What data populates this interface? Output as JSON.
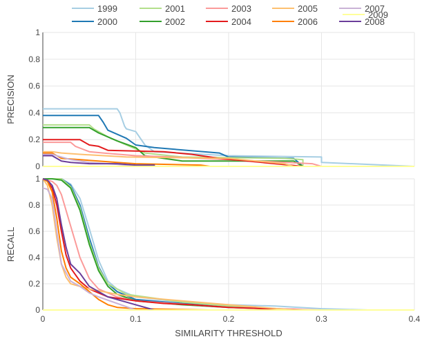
{
  "chart_data": [
    {
      "type": "line",
      "panel": "top",
      "ylabel": "PRECISION",
      "xlabel": "",
      "xlim": [
        0,
        0.4
      ],
      "ylim": [
        0,
        1
      ],
      "yticks": [
        "0",
        "0.2",
        "0.4",
        "0.6",
        "0.8",
        "1"
      ],
      "series": [
        {
          "name": "1999",
          "color": "#a6cee3",
          "x": [
            0,
            0.08,
            0.083,
            0.085,
            0.088,
            0.09,
            0.1,
            0.11,
            0.12,
            0.2,
            0.3,
            0.3,
            0.4
          ],
          "y": [
            0.43,
            0.43,
            0.4,
            0.36,
            0.3,
            0.28,
            0.26,
            0.16,
            0.11,
            0.08,
            0.07,
            0.03,
            0
          ]
        },
        {
          "name": "2000",
          "color": "#1f78b4",
          "x": [
            0,
            0.06,
            0.065,
            0.07,
            0.09,
            0.1,
            0.12,
            0.19,
            0.2,
            0.27,
            0.28
          ],
          "y": [
            0.38,
            0.38,
            0.33,
            0.27,
            0.21,
            0.16,
            0.14,
            0.1,
            0.07,
            0.06,
            0
          ]
        },
        {
          "name": "2001",
          "color": "#b2df8a",
          "x": [
            0,
            0.05,
            0.055,
            0.07,
            0.09,
            0.11,
            0.15,
            0.26,
            0.28,
            0.28
          ],
          "y": [
            0.31,
            0.31,
            0.28,
            0.22,
            0.16,
            0.1,
            0.07,
            0.06,
            0.05,
            0
          ]
        },
        {
          "name": "2002",
          "color": "#33a02c",
          "x": [
            0,
            0.05,
            0.06,
            0.08,
            0.1,
            0.11,
            0.15,
            0.27,
            0.28
          ],
          "y": [
            0.29,
            0.29,
            0.25,
            0.19,
            0.14,
            0.08,
            0.04,
            0.04,
            0
          ]
        },
        {
          "name": "2003",
          "color": "#fb9a99",
          "x": [
            0,
            0.03,
            0.035,
            0.05,
            0.065,
            0.1,
            0.14,
            0.29,
            0.3
          ],
          "y": [
            0.18,
            0.18,
            0.15,
            0.11,
            0.1,
            0.08,
            0.07,
            0.02,
            0
          ]
        },
        {
          "name": "2004",
          "color": "#e31a1c",
          "x": [
            0,
            0.04,
            0.05,
            0.06,
            0.07,
            0.13,
            0.16,
            0.19,
            0.25,
            0.28
          ],
          "y": [
            0.2,
            0.2,
            0.16,
            0.15,
            0.12,
            0.11,
            0.09,
            0.06,
            0.02,
            0
          ]
        },
        {
          "name": "2005",
          "color": "#fdbf6f",
          "x": [
            0,
            0.01,
            0.02,
            0.04,
            0.09,
            0.2,
            0.26,
            0.27
          ],
          "y": [
            0.11,
            0.11,
            0.1,
            0.09,
            0.07,
            0.06,
            0.02,
            0
          ]
        },
        {
          "name": "2006",
          "color": "#ff7f00",
          "x": [
            0,
            0.01,
            0.015,
            0.02,
            0.04,
            0.08,
            0.1,
            0.17,
            0.18
          ],
          "y": [
            0.1,
            0.1,
            0.08,
            0.06,
            0.05,
            0.03,
            0.02,
            0.01,
            0
          ]
        },
        {
          "name": "2007",
          "color": "#cab2d6",
          "x": [
            0,
            0.01,
            0.02,
            0.03,
            0.05,
            0.07,
            0.09,
            0.1
          ],
          "y": [
            0.09,
            0.09,
            0.07,
            0.05,
            0.03,
            0.02,
            0.01,
            0
          ]
        },
        {
          "name": "2008",
          "color": "#6a3d9a",
          "x": [
            0,
            0.01,
            0.015,
            0.02,
            0.03,
            0.05,
            0.08,
            0.1,
            0.12,
            0.12
          ],
          "y": [
            0.08,
            0.08,
            0.06,
            0.04,
            0.03,
            0.02,
            0.02,
            0.01,
            0.01,
            0
          ]
        },
        {
          "name": "2009",
          "color": "#ffff99",
          "x": [
            0,
            0.4
          ],
          "y": [
            0,
            0
          ]
        }
      ]
    },
    {
      "type": "line",
      "panel": "bottom",
      "ylabel": "RECALL",
      "xlabel": "SIMILARITY THRESHOLD",
      "xlim": [
        0,
        0.4
      ],
      "ylim": [
        0,
        1
      ],
      "xticks": [
        "0",
        "0.1",
        "0.2",
        "0.3",
        "0.4"
      ],
      "yticks": [
        "0",
        "0.2",
        "0.4",
        "0.6",
        "0.8",
        "1"
      ],
      "series": [
        {
          "name": "1999",
          "color": "#a6cee3",
          "x": [
            0,
            0.01,
            0.02,
            0.03,
            0.04,
            0.05,
            0.06,
            0.07,
            0.08,
            0.1,
            0.15,
            0.2,
            0.25,
            0.3,
            0.35,
            0.4
          ],
          "y": [
            1,
            1,
            1,
            0.96,
            0.85,
            0.62,
            0.38,
            0.22,
            0.16,
            0.1,
            0.06,
            0.04,
            0.03,
            0.01,
            0,
            0
          ]
        },
        {
          "name": "2000",
          "color": "#1f78b4",
          "x": [
            0,
            0.01,
            0.02,
            0.03,
            0.04,
            0.05,
            0.06,
            0.07,
            0.08,
            0.1,
            0.15,
            0.2,
            0.25,
            0.28
          ],
          "y": [
            1,
            1,
            1,
            0.95,
            0.8,
            0.55,
            0.33,
            0.2,
            0.14,
            0.08,
            0.05,
            0.03,
            0.01,
            0
          ]
        },
        {
          "name": "2001",
          "color": "#b2df8a",
          "x": [
            0,
            0.01,
            0.02,
            0.03,
            0.04,
            0.05,
            0.06,
            0.07,
            0.09,
            0.12,
            0.15,
            0.2,
            0.28
          ],
          "y": [
            1,
            1,
            1,
            0.94,
            0.78,
            0.52,
            0.32,
            0.2,
            0.12,
            0.09,
            0.06,
            0.03,
            0
          ]
        },
        {
          "name": "2002",
          "color": "#33a02c",
          "x": [
            0,
            0.01,
            0.02,
            0.03,
            0.04,
            0.05,
            0.06,
            0.07,
            0.08,
            0.1,
            0.15,
            0.2,
            0.28
          ],
          "y": [
            1,
            1,
            0.99,
            0.93,
            0.76,
            0.5,
            0.3,
            0.18,
            0.12,
            0.07,
            0.04,
            0.02,
            0
          ]
        },
        {
          "name": "2003",
          "color": "#fb9a99",
          "x": [
            0,
            0.01,
            0.015,
            0.02,
            0.03,
            0.04,
            0.05,
            0.06,
            0.08,
            0.1,
            0.14,
            0.2,
            0.3
          ],
          "y": [
            1,
            0.98,
            0.95,
            0.88,
            0.64,
            0.4,
            0.24,
            0.16,
            0.1,
            0.07,
            0.05,
            0.02,
            0
          ]
        },
        {
          "name": "2004",
          "color": "#e31a1c",
          "x": [
            0,
            0.005,
            0.01,
            0.015,
            0.02,
            0.025,
            0.03,
            0.04,
            0.05,
            0.07,
            0.1,
            0.13,
            0.16,
            0.2,
            0.28
          ],
          "y": [
            1,
            0.98,
            0.93,
            0.8,
            0.6,
            0.42,
            0.32,
            0.22,
            0.16,
            0.1,
            0.07,
            0.05,
            0.04,
            0.02,
            0
          ]
        },
        {
          "name": "2005",
          "color": "#fdbf6f",
          "x": [
            0,
            0.005,
            0.01,
            0.015,
            0.02,
            0.025,
            0.03,
            0.05,
            0.08,
            0.1,
            0.15,
            0.2,
            0.27
          ],
          "y": [
            1,
            0.95,
            0.8,
            0.55,
            0.35,
            0.25,
            0.2,
            0.16,
            0.12,
            0.1,
            0.07,
            0.04,
            0
          ]
        },
        {
          "name": "2006",
          "color": "#ff7f00",
          "x": [
            0,
            0.005,
            0.01,
            0.015,
            0.02,
            0.025,
            0.03,
            0.04,
            0.05,
            0.06,
            0.07,
            0.08,
            0.1,
            0.18
          ],
          "y": [
            1,
            0.98,
            0.9,
            0.7,
            0.45,
            0.32,
            0.25,
            0.2,
            0.14,
            0.08,
            0.04,
            0.02,
            0.01,
            0
          ]
        },
        {
          "name": "2007",
          "color": "#cab2d6",
          "x": [
            0,
            0.005,
            0.01,
            0.015,
            0.02,
            0.03,
            0.04,
            0.05,
            0.06,
            0.08,
            0.1
          ],
          "y": [
            0.93,
            0.92,
            0.85,
            0.6,
            0.35,
            0.22,
            0.18,
            0.13,
            0.1,
            0.05,
            0
          ]
        },
        {
          "name": "2008",
          "color": "#6a3d9a",
          "x": [
            0,
            0.005,
            0.01,
            0.015,
            0.02,
            0.025,
            0.03,
            0.04,
            0.05,
            0.07,
            0.1,
            0.12
          ],
          "y": [
            1,
            0.99,
            0.95,
            0.85,
            0.65,
            0.48,
            0.35,
            0.28,
            0.18,
            0.1,
            0.04,
            0
          ]
        },
        {
          "name": "2009",
          "color": "#ffff99",
          "x": [
            0,
            0.4
          ],
          "y": [
            0,
            0
          ]
        }
      ]
    }
  ],
  "legend": {
    "placement": "top",
    "rows": [
      [
        "1999",
        "2001",
        "2003",
        "2005",
        "2007"
      ],
      [
        "2000",
        "2002",
        "2004",
        "2006",
        "2008"
      ],
      [
        "2009"
      ]
    ]
  }
}
